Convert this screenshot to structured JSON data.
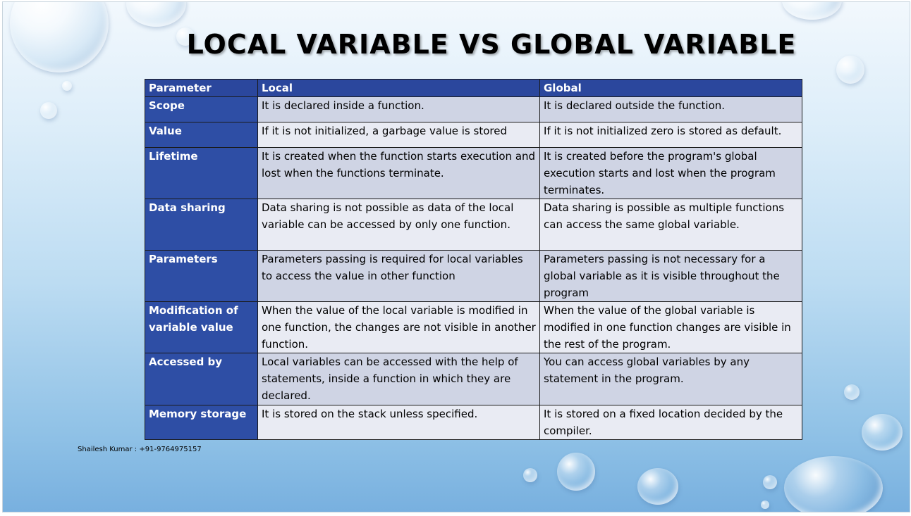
{
  "slide": {
    "title": "LOCAL VARIABLE VS GLOBAL VARIABLE",
    "footer": "Shailesh Kumar : +91-9764975157"
  },
  "table": {
    "headers": [
      "Parameter",
      "Local",
      "Global"
    ],
    "rows": [
      {
        "param": "Scope",
        "local": "It is declared inside a function.",
        "global": "It is declared outside the function."
      },
      {
        "param": "Value",
        "local": "If it is not initialized, a garbage value is stored",
        "global": "If it is not initialized zero is stored as default."
      },
      {
        "param": "Lifetime",
        "local": "It is created when the function starts execution and lost when the functions terminate.",
        "global": "It is created before the program's global execution starts and lost when the program terminates."
      },
      {
        "param": "Data sharing",
        "local": "Data sharing is not possible as data of the local variable can be accessed by only one function.",
        "global": "Data sharing is possible as multiple functions can access the same global variable."
      },
      {
        "param": "Parameters",
        "local": "Parameters passing is required for local variables to access the value in other function",
        "global": "Parameters passing is not necessary for a global variable as it is visible throughout the program"
      },
      {
        "param": "Modification of variable value",
        "local": "When the value of the local variable is modified in one function, the changes are not visible in another function.",
        "global": "When the value of the global variable is modified in one function changes are visible in the rest of the program."
      },
      {
        "param": "Accessed by",
        "local": "Local variables can be accessed with the help of statements, inside a function in which they are declared.",
        "global": "You can access global variables by any statement in the program."
      },
      {
        "param": "Memory storage",
        "local": "It is stored on the stack unless specified.",
        "global": "It is stored on a fixed location decided by the compiler."
      }
    ]
  },
  "colors": {
    "header_bg": "#2b479d",
    "param_bg": "#2e4ea5",
    "row_odd": "#cfd4e4",
    "row_even": "#e9ebf3"
  }
}
